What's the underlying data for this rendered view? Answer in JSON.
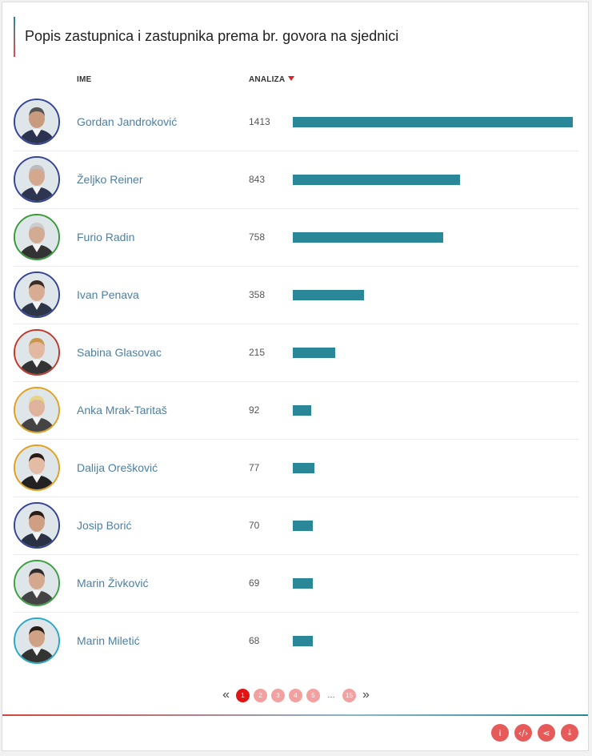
{
  "title": "Popis zastupnica i zastupnika prema br. govora na sjednici",
  "columns": {
    "name": "IME",
    "value": "ANALIZA"
  },
  "max_value": 1413,
  "rows": [
    {
      "name": "Gordan Jandroković",
      "value": "1413",
      "count": 1413,
      "ring": "#334499",
      "suit": "#2b3350",
      "skin": "#c89a7e",
      "hair": "#555"
    },
    {
      "name": "Željko Reiner",
      "value": "843",
      "count": 843,
      "ring": "#334499",
      "suit": "#2e3550",
      "skin": "#d4a88e",
      "hair": "#bbb"
    },
    {
      "name": "Furio Radin",
      "value": "758",
      "count": 758,
      "ring": "#3a9a3a",
      "suit": "#333",
      "skin": "#d2ab92",
      "hair": "#ccc"
    },
    {
      "name": "Ivan Penava",
      "value": "358",
      "count": 358,
      "ring": "#334499",
      "suit": "#2d3648",
      "skin": "#d8ac92",
      "hair": "#3a2c22"
    },
    {
      "name": "Sabina Glasovac",
      "value": "215",
      "count": 215,
      "ring": "#c0392b",
      "suit": "#333",
      "skin": "#e3b8a0",
      "hair": "#c9964e"
    },
    {
      "name": "Anka Mrak-Taritaš",
      "value": "92",
      "count": 92,
      "ring": "#e0a020",
      "suit": "#444",
      "skin": "#e0b49c",
      "hair": "#e6d48a"
    },
    {
      "name": "Dalija Orešković",
      "value": "77",
      "count": 77,
      "ring": "#e0a020",
      "suit": "#222",
      "skin": "#e4bca6",
      "hair": "#2a1d16"
    },
    {
      "name": "Josip Borić",
      "value": "70",
      "count": 70,
      "ring": "#334499",
      "suit": "#2a3145",
      "skin": "#cf9f84",
      "hair": "#2a1d16"
    },
    {
      "name": "Marin Živković",
      "value": "69",
      "count": 69,
      "ring": "#3aa040",
      "suit": "#444",
      "skin": "#d3a88c",
      "hair": "#2e2e2e"
    },
    {
      "name": "Marin Miletić",
      "value": "68",
      "count": 68,
      "ring": "#2aa8c8",
      "suit": "#333",
      "skin": "#cfa286",
      "hair": "#2a1d16"
    }
  ],
  "pagination": {
    "prev": "«",
    "next": "»",
    "pages": [
      "1",
      "2",
      "3",
      "4",
      "5"
    ],
    "ellipsis": "…",
    "last": "15",
    "active": "1"
  },
  "actions": [
    {
      "name": "info-icon",
      "glyph": "i"
    },
    {
      "name": "embed-code-icon",
      "glyph": "‹/›"
    },
    {
      "name": "share-icon",
      "glyph": "⋖"
    },
    {
      "name": "download-icon",
      "glyph": "⤓"
    }
  ]
}
